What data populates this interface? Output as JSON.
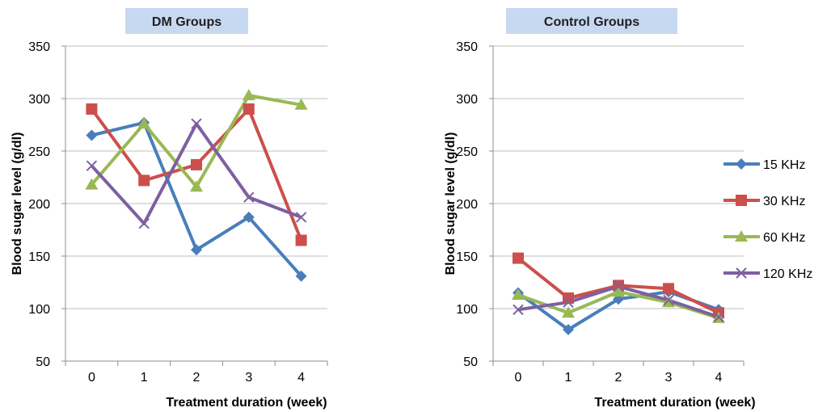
{
  "chart_data": [
    {
      "type": "line",
      "title": "DM Groups",
      "xlabel": "Treatment duration (week)",
      "ylabel": "Blood sugar level  (g/dl)",
      "categories": [
        "0",
        "1",
        "2",
        "3",
        "4"
      ],
      "ylim": [
        50,
        350
      ],
      "yticks": [
        50,
        100,
        150,
        200,
        250,
        300,
        350
      ],
      "grid": "horizontal",
      "series": [
        {
          "name": "15 KHz",
          "color": "#4a7ebb",
          "marker": "diamond",
          "values": [
            265,
            277,
            156,
            187,
            131
          ]
        },
        {
          "name": "30 KHz",
          "color": "#cd4f4b",
          "marker": "square",
          "values": [
            290,
            222,
            237,
            290,
            165
          ]
        },
        {
          "name": "60 KHz",
          "color": "#98b954",
          "marker": "triangle",
          "values": [
            218,
            276,
            216,
            303,
            294
          ]
        },
        {
          "name": "120 KHz",
          "color": "#7d60a0",
          "marker": "x",
          "values": [
            236,
            181,
            276,
            206,
            187
          ]
        }
      ]
    },
    {
      "type": "line",
      "title": "Control Groups",
      "xlabel": "Treatment duration (week)",
      "ylabel": "Blood sugar level  (g/dl)",
      "categories": [
        "0",
        "1",
        "2",
        "3",
        "4"
      ],
      "ylim": [
        50,
        350
      ],
      "yticks": [
        50,
        100,
        150,
        200,
        250,
        300,
        350
      ],
      "grid": "horizontal",
      "legend": "right",
      "series": [
        {
          "name": "15 KHz",
          "color": "#4a7ebb",
          "marker": "diamond",
          "values": [
            115,
            80,
            109,
            116,
            99
          ]
        },
        {
          "name": "30 KHz",
          "color": "#cd4f4b",
          "marker": "square",
          "values": [
            148,
            110,
            122,
            119,
            96
          ]
        },
        {
          "name": "60 KHz",
          "color": "#98b954",
          "marker": "triangle",
          "values": [
            113,
            96,
            116,
            106,
            91
          ]
        },
        {
          "name": "120 KHz",
          "color": "#7d60a0",
          "marker": "x",
          "values": [
            99,
            106,
            121,
            108,
            92
          ]
        }
      ]
    }
  ]
}
